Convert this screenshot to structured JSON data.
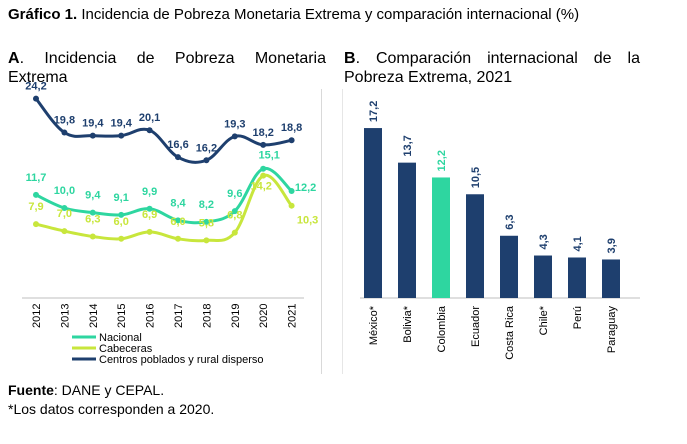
{
  "figure": {
    "label": "Gráfico 1.",
    "title": " Incidencia de Pobreza Monetaria Extrema y comparación internacional (%)"
  },
  "panelA": {
    "letter": "A",
    "title": ". Incidencia de Pobreza Monetaria Extrema"
  },
  "panelB": {
    "letter": "B",
    "title": ". Comparación internacional de la Pobreza Extrema, 2021"
  },
  "footnote": {
    "source_label": "Fuente",
    "source_text": ": DANE y CEPAL.",
    "note": "*Los datos corresponden a 2020."
  },
  "chart_data": [
    {
      "type": "line",
      "x": [
        "2012",
        "2013",
        "2014",
        "2015",
        "2016",
        "2017",
        "2018",
        "2019",
        "2020",
        "2021"
      ],
      "series": [
        {
          "name": "Nacional",
          "color": "#2ed6a0",
          "values": [
            11.7,
            10.0,
            9.4,
            9.1,
            9.9,
            8.4,
            8.2,
            9.6,
            15.1,
            12.2
          ],
          "labels": [
            "11,7",
            "10,0",
            "9,4",
            "9,1",
            "9,9",
            "8,4",
            "8,2",
            "9,6",
            "15,1",
            "12,2"
          ]
        },
        {
          "name": "Cabeceras",
          "color": "#c8e63c",
          "values": [
            7.9,
            7.0,
            6.3,
            6.0,
            6.9,
            6.0,
            5.8,
            6.8,
            14.2,
            10.3
          ],
          "labels": [
            "7,9",
            "7,0",
            "6,3",
            "6,0",
            "6,9",
            "6,0",
            "5,8",
            "6,8",
            "14,2",
            "10,3"
          ]
        },
        {
          "name": "Centros poblados y rural disperso",
          "color": "#1e3f6e",
          "values": [
            24.2,
            19.8,
            19.4,
            19.4,
            20.1,
            16.6,
            16.2,
            19.3,
            18.2,
            18.8
          ],
          "labels": [
            "24,2",
            "19,8",
            "19,4",
            "19,4",
            "20,1",
            "16,6",
            "16,2",
            "19,3",
            "18,2",
            "18,8"
          ]
        }
      ],
      "legend": "bottom",
      "grid": false
    },
    {
      "type": "bar",
      "categories": [
        "México*",
        "Bolivia*",
        "Colombia",
        "Ecuador",
        "Costa Rica",
        "Chile*",
        "Perú",
        "Paraguay"
      ],
      "values": [
        17.2,
        13.7,
        12.2,
        10.5,
        6.3,
        4.3,
        4.1,
        3.9
      ],
      "labels": [
        "17,2",
        "13,7",
        "12,2",
        "10,5",
        "6,3",
        "4,3",
        "4,1",
        "3,9"
      ],
      "colors": [
        "#1e3f6e",
        "#1e3f6e",
        "#2ed6a0",
        "#1e3f6e",
        "#1e3f6e",
        "#1e3f6e",
        "#1e3f6e",
        "#1e3f6e"
      ],
      "grid": false
    }
  ]
}
